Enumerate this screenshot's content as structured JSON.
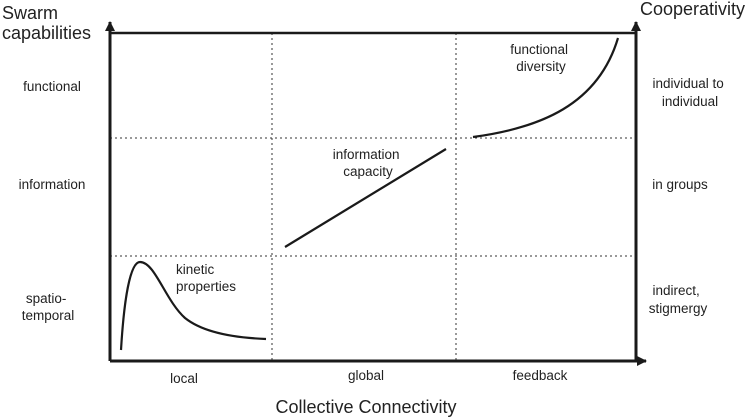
{
  "diagram": {
    "y_title_left": [
      "Swarm",
      "capabilities"
    ],
    "y_title_right": "Cooperativity",
    "x_title": "Collective Connectivity",
    "x_categories": [
      "local",
      "global",
      "feedback"
    ],
    "y_left_levels": [
      [
        "functional"
      ],
      [
        "information"
      ],
      [
        "spatio-",
        "temporal"
      ]
    ],
    "y_right_levels": [
      [
        "individual to",
        "individual"
      ],
      [
        "in groups"
      ],
      [
        "indirect,",
        "stigmergy"
      ]
    ],
    "curves": {
      "kinetic": [
        "kinetic",
        "properties"
      ],
      "information": [
        "information",
        "capacity"
      ],
      "functional": [
        "functional",
        "diversity"
      ]
    }
  }
}
